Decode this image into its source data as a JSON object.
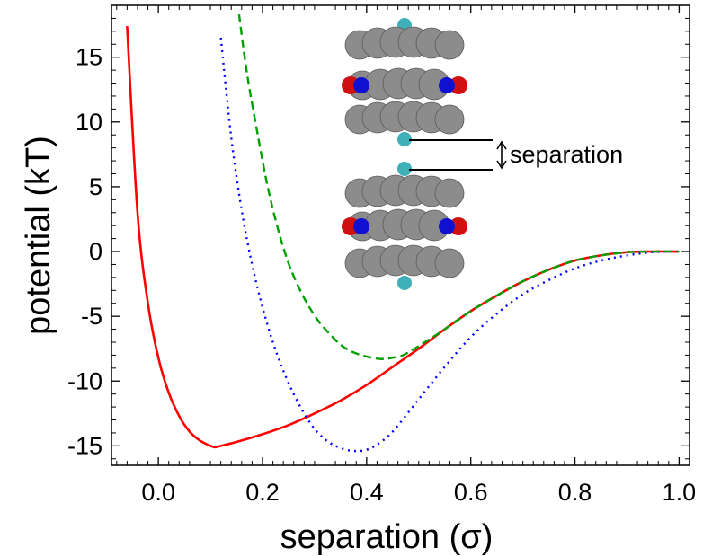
{
  "chart_data": {
    "type": "line",
    "title": "",
    "xlabel": "separation (σ)",
    "ylabel": "potential (kT)",
    "xlim": [
      -0.09,
      1.02
    ],
    "ylim": [
      -16.5,
      19
    ],
    "x_ticks": [
      0.0,
      0.2,
      0.4,
      0.6,
      0.8,
      1.0
    ],
    "x_tick_labels": [
      "0.0",
      "0.2",
      "0.4",
      "0.6",
      "0.8",
      "1.0"
    ],
    "y_ticks": [
      -15,
      -10,
      -5,
      0,
      5,
      10,
      15
    ],
    "y_tick_labels": [
      "-15",
      "-10",
      "-5",
      "0",
      "5",
      "10",
      "15"
    ],
    "grid": false,
    "legend": "none",
    "series": [
      {
        "color": "#ff0000",
        "style": "solid",
        "x": [
          -0.06,
          -0.04,
          -0.02,
          0.0,
          0.02,
          0.04,
          0.06,
          0.08,
          0.1,
          0.11,
          0.12,
          0.15,
          0.2,
          0.25,
          0.3,
          0.35,
          0.4,
          0.45,
          0.5,
          0.55,
          0.6,
          0.65,
          0.7,
          0.75,
          0.8,
          0.85,
          0.9,
          0.95,
          0.98,
          1.0
        ],
        "y": [
          17.4,
          3.0,
          -4.0,
          -8.2,
          -10.9,
          -12.7,
          -13.9,
          -14.6,
          -15.0,
          -15.1,
          -15.0,
          -14.7,
          -14.1,
          -13.4,
          -12.5,
          -11.5,
          -10.3,
          -8.9,
          -7.5,
          -6.0,
          -4.6,
          -3.4,
          -2.3,
          -1.4,
          -0.7,
          -0.3,
          -0.05,
          0.0,
          0.0,
          0.0
        ]
      },
      {
        "color": "#0000ff",
        "style": "dotted",
        "x": [
          0.12,
          0.14,
          0.16,
          0.18,
          0.2,
          0.22,
          0.24,
          0.26,
          0.28,
          0.3,
          0.32,
          0.34,
          0.36,
          0.38,
          0.4,
          0.42,
          0.45,
          0.5,
          0.55,
          0.6,
          0.65,
          0.7,
          0.75,
          0.8,
          0.85,
          0.9,
          0.95,
          1.0
        ],
        "y": [
          16.5,
          8.8,
          3.2,
          -1.0,
          -4.3,
          -7.0,
          -9.2,
          -11.0,
          -12.5,
          -13.7,
          -14.5,
          -15.0,
          -15.3,
          -15.4,
          -15.3,
          -14.9,
          -13.9,
          -11.4,
          -8.9,
          -6.6,
          -4.8,
          -3.3,
          -2.2,
          -1.3,
          -0.7,
          -0.3,
          -0.05,
          0.0
        ]
      },
      {
        "color": "#00a000",
        "style": "dashed",
        "x": [
          0.155,
          0.17,
          0.19,
          0.21,
          0.23,
          0.25,
          0.27,
          0.29,
          0.31,
          0.33,
          0.35,
          0.37,
          0.39,
          0.41,
          0.43,
          0.45,
          0.47,
          0.5,
          0.55,
          0.6,
          0.65,
          0.7,
          0.75,
          0.8,
          0.85,
          0.9,
          0.95,
          1.0
        ],
        "y": [
          18.3,
          13.8,
          9.2,
          5.0,
          1.7,
          -0.9,
          -2.8,
          -4.3,
          -5.5,
          -6.4,
          -7.2,
          -7.7,
          -8.0,
          -8.2,
          -8.3,
          -8.2,
          -8.0,
          -7.3,
          -6.0,
          -4.6,
          -3.4,
          -2.3,
          -1.4,
          -0.7,
          -0.3,
          -0.05,
          0.0,
          0.0
        ]
      }
    ],
    "annotation": {
      "label": "separation",
      "description_colors": {
        "carbon": "#8c8c8c",
        "nitrogen": "#1010d0",
        "oxygen": "#d01010",
        "end_group": "#3fb0b8"
      }
    }
  }
}
